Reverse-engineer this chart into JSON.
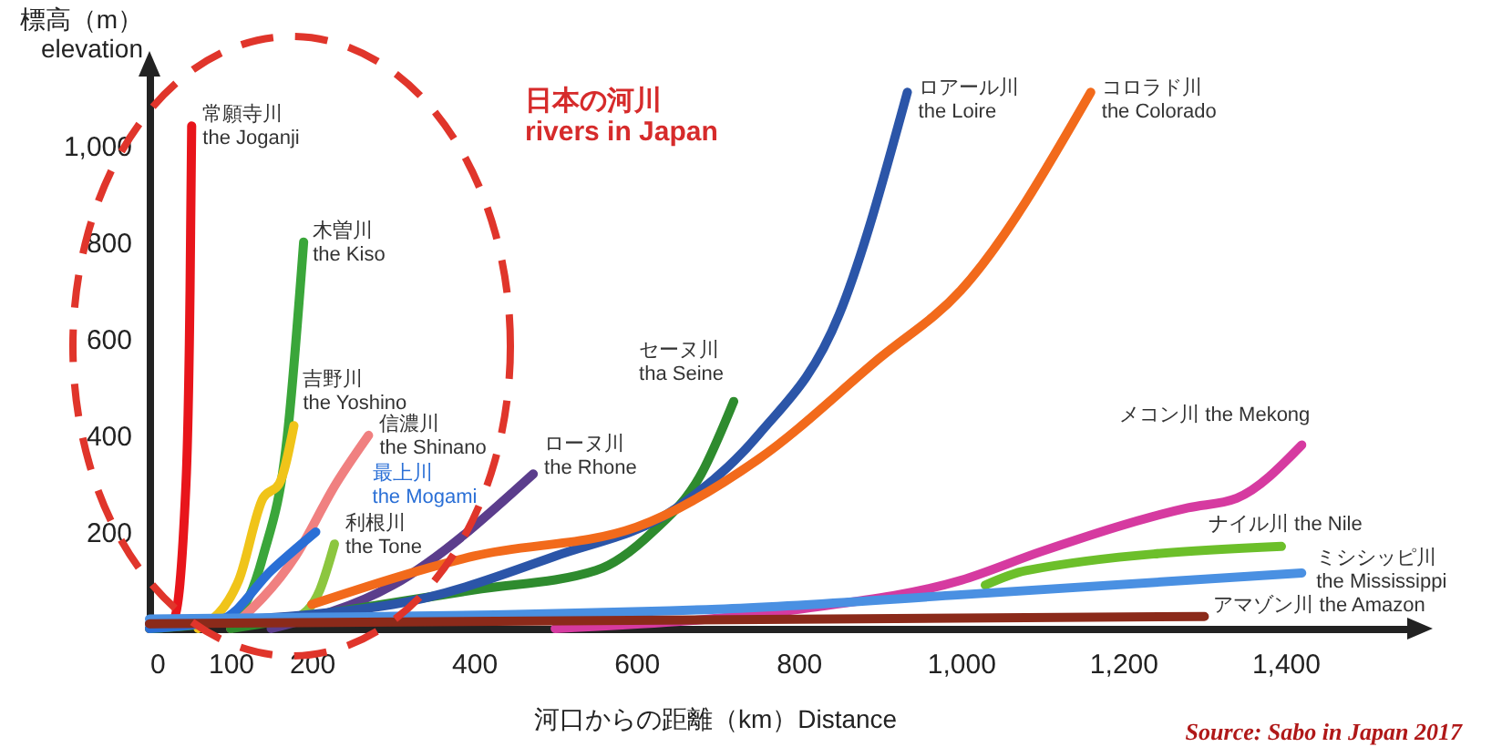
{
  "chart_data": {
    "type": "line",
    "xlabel": "河口からの距離（km）Distance",
    "ylabel": "標高（m）\nelevation",
    "xlim": [
      0,
      1550
    ],
    "ylim": [
      0,
      1150
    ],
    "xticks": [
      0,
      100,
      200,
      400,
      600,
      800,
      {
        "value": 1000,
        "label": "1,000"
      },
      {
        "value": 1200,
        "label": "1,200"
      },
      {
        "value": 1400,
        "label": "1,400"
      }
    ],
    "yticks": [
      200,
      400,
      600,
      800,
      {
        "value": 1000,
        "label": "1,000"
      }
    ],
    "grid": false,
    "legend": false,
    "marker": "none",
    "line_style": "solid",
    "series": [
      {
        "name": "常願寺川\nthe Joganji",
        "color": "#e8151b",
        "x": [
          0,
          30,
          45,
          50,
          52
        ],
        "values": [
          0,
          20,
          300,
          700,
          1040
        ]
      },
      {
        "name": "木曽川\nthe Kiso",
        "color": "#3aa63a",
        "x": [
          0,
          100,
          140,
          170,
          190
        ],
        "values": [
          0,
          20,
          150,
          400,
          800
        ]
      },
      {
        "name": "吉野川\nthe Yoshino",
        "color": "#f0c419",
        "x": [
          60,
          110,
          140,
          160,
          178
        ],
        "values": [
          0,
          100,
          270,
          300,
          420
        ]
      },
      {
        "name": "信濃川\nthe Shinano",
        "color": "#f08080",
        "x": [
          100,
          180,
          230,
          270
        ],
        "values": [
          0,
          150,
          300,
          400
        ]
      },
      {
        "name": "最上川\nthe Mogami",
        "color": "#2a6fd6",
        "x": [
          0,
          90,
          150,
          205
        ],
        "values": [
          0,
          20,
          120,
          200
        ]
      },
      {
        "name": "利根川\nthe Tone",
        "color": "#8cc63f",
        "x": [
          180,
          210,
          228
        ],
        "values": [
          20,
          80,
          175
        ]
      },
      {
        "name": "ローヌ川\nthe Rhone",
        "color": "#5b3d8c",
        "x": [
          150,
          300,
          473
        ],
        "values": [
          0,
          90,
          320
        ]
      },
      {
        "name": "セーヌ川\ntha Seine",
        "color": "#2e8b2e",
        "x": [
          100,
          400,
          550,
          620,
          680,
          720
        ],
        "values": [
          0,
          80,
          120,
          200,
          320,
          470
        ]
      },
      {
        "name": "ロアール川\nthe Loire",
        "color": "#2b55a8",
        "x": [
          0,
          300,
          500,
          650,
          750,
          850,
          934
        ],
        "values": [
          10,
          50,
          150,
          250,
          400,
          650,
          1110
        ]
      },
      {
        "name": "コロラド川\nthe Colorado",
        "color": "#f26a1b",
        "x": [
          200,
          400,
          600,
          750,
          900,
          1000,
          1160
        ],
        "values": [
          50,
          150,
          210,
          350,
          560,
          700,
          1110
        ]
      },
      {
        "name": "メコン川  the Mekong",
        "color": "#d63aa0",
        "x": [
          500,
          800,
          1000,
          1100,
          1280,
          1340,
          1420
        ],
        "values": [
          0,
          40,
          100,
          160,
          250,
          270,
          380
        ]
      },
      {
        "name": "ナイル川  the Nile",
        "color": "#6cbf2a",
        "x": [
          1030,
          1080,
          1395
        ],
        "values": [
          90,
          120,
          170
        ]
      },
      {
        "name": "ミシシッピ川\nthe Mississippi",
        "color": "#4a90e2",
        "x": [
          0,
          700,
          1000,
          1420
        ],
        "values": [
          20,
          40,
          70,
          115
        ]
      },
      {
        "name": "アマゾン川  the Amazon",
        "color": "#8b2a1a",
        "x": [
          0,
          1300
        ],
        "values": [
          10,
          25
        ]
      }
    ],
    "annotations": [
      "日本の河川\nrivers in Japan",
      "Source: Sabo in Japan 2017"
    ]
  }
}
